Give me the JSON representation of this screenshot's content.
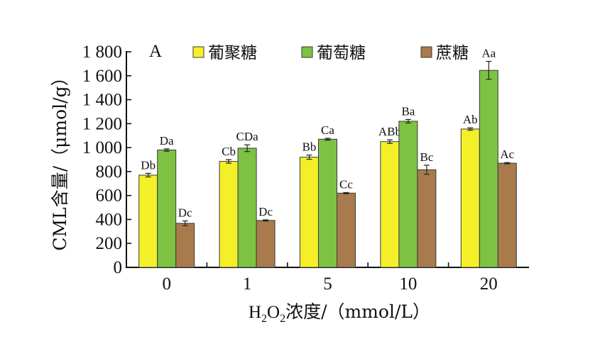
{
  "chart_data": {
    "type": "bar",
    "panel_label": "A",
    "categories": [
      "0",
      "1",
      "5",
      "10",
      "20"
    ],
    "series": [
      {
        "name": "葡聚糖",
        "color": "#f5ef2a",
        "values": [
          770,
          885,
          920,
          1050,
          1155
        ],
        "errors": [
          15,
          15,
          18,
          15,
          10
        ],
        "labels": [
          "Db",
          "Cb",
          "Bb",
          "ABb",
          "Ab"
        ]
      },
      {
        "name": "葡萄糖",
        "color": "#7dc242",
        "values": [
          980,
          995,
          1070,
          1220,
          1645
        ],
        "errors": [
          10,
          28,
          8,
          15,
          75
        ],
        "labels": [
          "Da",
          "CDa",
          "Ca",
          "Ba",
          "Aa"
        ]
      },
      {
        "name": "蔗糖",
        "color": "#a87a4c",
        "values": [
          368,
          392,
          620,
          815,
          870
        ],
        "errors": [
          20,
          5,
          5,
          38,
          5
        ],
        "labels": [
          "Dc",
          "Dc",
          "Cc",
          "Bc",
          "Ac"
        ]
      }
    ],
    "xlabel": {
      "main": "H",
      "sub1": "2",
      "mid": "O",
      "sub2": "2",
      "rest": "浓度/（mmol/L）"
    },
    "ylabel": "CML含量/（μmol/g）",
    "ylim": [
      0,
      1800
    ],
    "yticks": [
      0,
      200,
      400,
      600,
      800,
      1000,
      1200,
      1400,
      1600,
      1800
    ],
    "ytick_labels": [
      "0",
      "200",
      "400",
      "600",
      "800",
      "1 000",
      "1 200",
      "1 400",
      "1 600",
      "1 800"
    ],
    "grid": false,
    "legend_position": "top"
  }
}
